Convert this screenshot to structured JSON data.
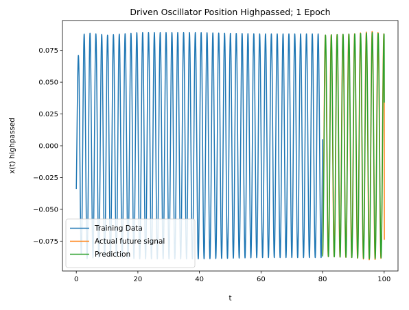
{
  "chart_data": {
    "type": "line",
    "title": "Driven Oscillator Position Highpassed; 1 Epoch",
    "xlabel": "t",
    "ylabel": "x(t) highpassed",
    "xlim": [
      -4.5,
      104.5
    ],
    "ylim": [
      -0.0985,
      0.0985
    ],
    "xticks": [
      0,
      20,
      40,
      60,
      80,
      100
    ],
    "xtick_labels": [
      "0",
      "20",
      "40",
      "60",
      "80",
      "100"
    ],
    "yticks": [
      -0.075,
      -0.05,
      -0.025,
      0.0,
      0.025,
      0.05,
      0.075
    ],
    "ytick_labels": [
      "−0.075",
      "−0.050",
      "−0.025",
      "0.000",
      "0.025",
      "0.050",
      "0.075"
    ],
    "grid": false,
    "legend": "lower-left",
    "series": [
      {
        "name": "Training Data",
        "color": "#1f77b4",
        "t_range": [
          0,
          80
        ],
        "start_value": -0.034,
        "period": 1.9,
        "amplitude_envelope": [
          [
            0,
            0.06
          ],
          [
            1.5,
            0.085
          ],
          [
            3,
            0.089
          ],
          [
            10,
            0.087
          ],
          [
            20,
            0.089
          ],
          [
            40,
            0.089
          ],
          [
            60,
            0.088
          ],
          [
            80,
            0.088
          ]
        ]
      },
      {
        "name": "Actual future signal",
        "color": "#ff7f0e",
        "t_range": [
          80,
          100
        ],
        "end_value": -0.074,
        "period": 1.9,
        "amplitude_envelope": [
          [
            80,
            0.087
          ],
          [
            90,
            0.088
          ],
          [
            96,
            0.09
          ],
          [
            100,
            0.088
          ]
        ]
      },
      {
        "name": "Prediction",
        "color": "#2ca02c",
        "t_range": [
          80,
          100
        ],
        "end_value": 0.034,
        "period": 1.9,
        "amplitude_envelope": [
          [
            80,
            0.087
          ],
          [
            90,
            0.088
          ],
          [
            96,
            0.089
          ],
          [
            100,
            0.088
          ]
        ]
      }
    ]
  }
}
